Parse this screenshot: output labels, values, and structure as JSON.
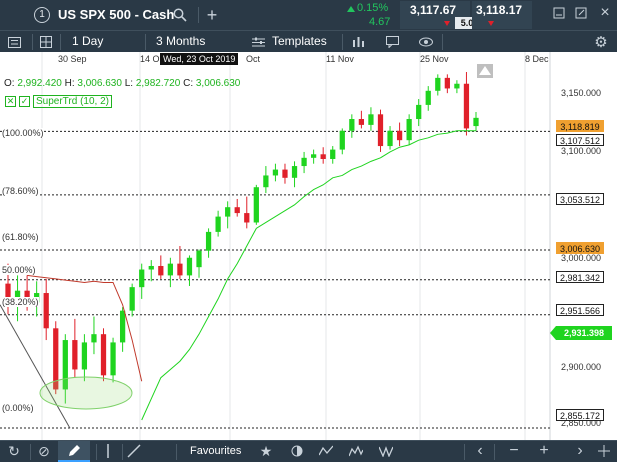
{
  "header": {
    "instrument_number": "1",
    "instrument_name": "US SPX 500 - Cash",
    "change_pct": "0.15%",
    "change_abs": "4.67",
    "sell_price": "3,117.67",
    "buy_price": "3,118.17",
    "spread": "5.0"
  },
  "toolbar": {
    "timeframe": "1 Day",
    "range": "3 Months",
    "templates": "Templates"
  },
  "ohlc": {
    "o_label": "O:",
    "o_value": "2,992.420",
    "h_label": "H:",
    "h_value": "3,006.630",
    "l_label": "L:",
    "l_value": "2,982.720",
    "c_label": "C:",
    "c_value": "3,006.630"
  },
  "indicator": {
    "label": "SuperTrd (10, 2)"
  },
  "crosshair_date": "Wed, 23 Oct 2019",
  "date_ticks": [
    "30 Sep",
    "14 O",
    "Oct",
    "11 Nov",
    "25 Nov",
    "8 Dec"
  ],
  "fib_levels": [
    "(100.00%)",
    "(78.60%)",
    "(61.80%)",
    "50.00%)",
    "(38.20%)",
    "(0.00%)"
  ],
  "price_ticks": [
    "3,150.000",
    "3,100.000",
    "3,000.000",
    "2,900.000",
    "2,850.000"
  ],
  "price_labels": {
    "current": "3,118.819",
    "fib100": "3,107.512",
    "fib786": "3,053.512",
    "fib618": "3,006.630",
    "fib50": "2,981.342",
    "fib382": "2,951.566",
    "supertrend": "2,931.398",
    "fib0": "2,855.172"
  },
  "bottom": {
    "favourites": "Favourites"
  },
  "colors": {
    "bg_dark": "#2a3946",
    "up_green": "#1fd41f",
    "down_red": "#e0202a",
    "price_orange": "#f0a030",
    "change_green": "#22c55e"
  },
  "chart_data": {
    "type": "candlestick",
    "ylim": [
      2845,
      3175
    ],
    "candles": [
      {
        "o": 2978,
        "h": 2995,
        "l": 2952,
        "c": 2960
      },
      {
        "o": 2960,
        "h": 2985,
        "l": 2946,
        "c": 2972
      },
      {
        "o": 2972,
        "h": 2985,
        "l": 2955,
        "c": 2962
      },
      {
        "o": 2962,
        "h": 2980,
        "l": 2950,
        "c": 2970
      },
      {
        "o": 2970,
        "h": 2982,
        "l": 2930,
        "c": 2940
      },
      {
        "o": 2940,
        "h": 2946,
        "l": 2884,
        "c": 2888
      },
      {
        "o": 2888,
        "h": 2935,
        "l": 2876,
        "c": 2930
      },
      {
        "o": 2930,
        "h": 2948,
        "l": 2898,
        "c": 2905
      },
      {
        "o": 2905,
        "h": 2935,
        "l": 2895,
        "c": 2928
      },
      {
        "o": 2928,
        "h": 2950,
        "l": 2918,
        "c": 2935
      },
      {
        "o": 2935,
        "h": 2940,
        "l": 2895,
        "c": 2900
      },
      {
        "o": 2900,
        "h": 2932,
        "l": 2894,
        "c": 2928
      },
      {
        "o": 2928,
        "h": 2958,
        "l": 2920,
        "c": 2955
      },
      {
        "o": 2955,
        "h": 2978,
        "l": 2950,
        "c": 2975
      },
      {
        "o": 2975,
        "h": 2995,
        "l": 2965,
        "c": 2990
      },
      {
        "o": 2990,
        "h": 2998,
        "l": 2980,
        "c": 2993
      },
      {
        "o": 2993,
        "h": 3002,
        "l": 2982,
        "c": 2985
      },
      {
        "o": 2985,
        "h": 3000,
        "l": 2975,
        "c": 2995
      },
      {
        "o": 2995,
        "h": 3010,
        "l": 2982,
        "c": 2985
      },
      {
        "o": 2985,
        "h": 3002,
        "l": 2976,
        "c": 3000
      },
      {
        "o": 2992,
        "h": 3007,
        "l": 2983,
        "c": 3006
      },
      {
        "o": 3006,
        "h": 3025,
        "l": 3000,
        "c": 3022
      },
      {
        "o": 3022,
        "h": 3040,
        "l": 3018,
        "c": 3035
      },
      {
        "o": 3035,
        "h": 3048,
        "l": 3025,
        "c": 3043
      },
      {
        "o": 3043,
        "h": 3050,
        "l": 3035,
        "c": 3038
      },
      {
        "o": 3038,
        "h": 3052,
        "l": 3025,
        "c": 3030
      },
      {
        "o": 3030,
        "h": 3062,
        "l": 3028,
        "c": 3060
      },
      {
        "o": 3060,
        "h": 3078,
        "l": 3055,
        "c": 3070
      },
      {
        "o": 3070,
        "h": 3080,
        "l": 3065,
        "c": 3075
      },
      {
        "o": 3075,
        "h": 3080,
        "l": 3063,
        "c": 3068
      },
      {
        "o": 3068,
        "h": 3082,
        "l": 3060,
        "c": 3078
      },
      {
        "o": 3078,
        "h": 3090,
        "l": 3072,
        "c": 3085
      },
      {
        "o": 3085,
        "h": 3092,
        "l": 3080,
        "c": 3088
      },
      {
        "o": 3088,
        "h": 3094,
        "l": 3080,
        "c": 3084
      },
      {
        "o": 3084,
        "h": 3095,
        "l": 3080,
        "c": 3092
      },
      {
        "o": 3092,
        "h": 3110,
        "l": 3088,
        "c": 3108
      },
      {
        "o": 3108,
        "h": 3122,
        "l": 3102,
        "c": 3118
      },
      {
        "o": 3118,
        "h": 3125,
        "l": 3110,
        "c": 3113
      },
      {
        "o": 3113,
        "h": 3128,
        "l": 3108,
        "c": 3122
      },
      {
        "o": 3122,
        "h": 3126,
        "l": 3090,
        "c": 3095
      },
      {
        "o": 3095,
        "h": 3112,
        "l": 3092,
        "c": 3108
      },
      {
        "o": 3108,
        "h": 3115,
        "l": 3095,
        "c": 3100
      },
      {
        "o": 3100,
        "h": 3122,
        "l": 3096,
        "c": 3118
      },
      {
        "o": 3118,
        "h": 3135,
        "l": 3112,
        "c": 3130
      },
      {
        "o": 3130,
        "h": 3146,
        "l": 3125,
        "c": 3142
      },
      {
        "o": 3142,
        "h": 3156,
        "l": 3138,
        "c": 3153
      },
      {
        "o": 3153,
        "h": 3156,
        "l": 3140,
        "c": 3144
      },
      {
        "o": 3144,
        "h": 3151,
        "l": 3140,
        "c": 3148
      },
      {
        "o": 3148,
        "h": 3158,
        "l": 3104,
        "c": 3110
      },
      {
        "o": 3112,
        "h": 3124,
        "l": 3108,
        "c": 3119
      }
    ],
    "supertrend_red": [
      2985,
      2984,
      2983,
      2982,
      2981,
      2980,
      2979,
      2980,
      2979,
      2979,
      2960,
      2930,
      2895
    ],
    "supertrend_green": [
      2862,
      2880,
      2898,
      2905,
      2912,
      2922,
      2935,
      2950,
      2965,
      2982,
      2995,
      3010,
      3025,
      3030,
      3035,
      3040,
      3045,
      3052,
      3058,
      3062,
      3068,
      3070,
      3075,
      3078,
      3082,
      3085,
      3090,
      3094,
      3096,
      3100,
      3102,
      3105,
      3106,
      3108,
      3108,
      3108
    ]
  }
}
